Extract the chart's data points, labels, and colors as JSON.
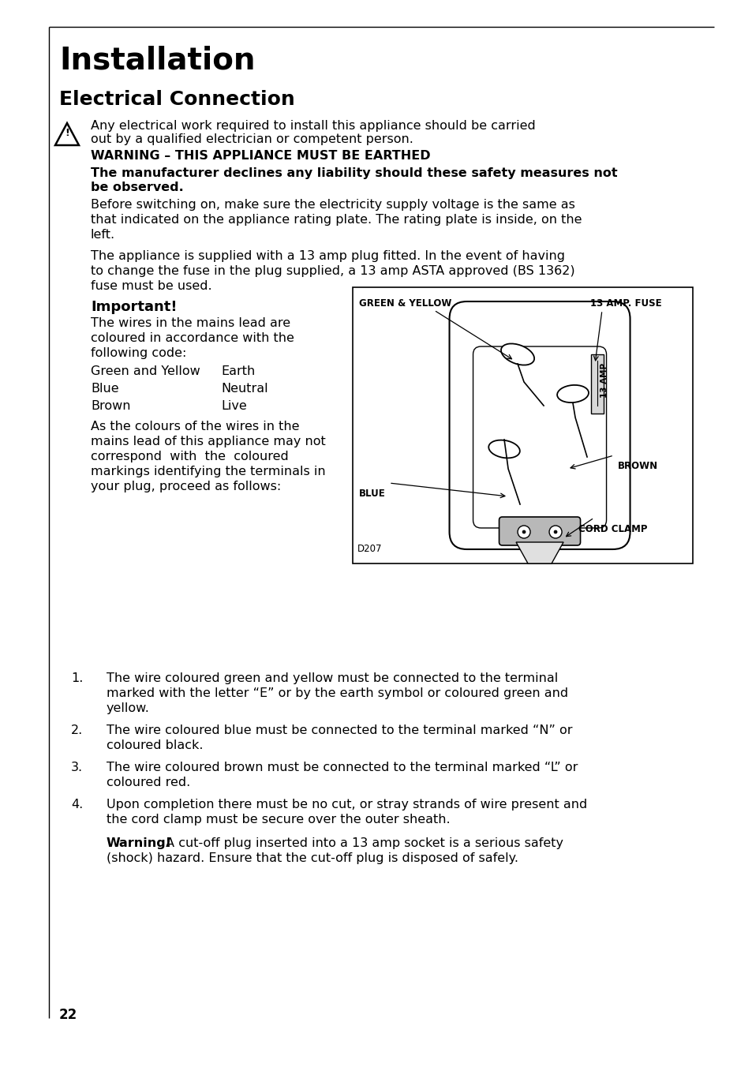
{
  "title": "Installation",
  "subtitle": "Electrical Connection",
  "bg_color": "#ffffff",
  "text_color": "#000000",
  "page_number": "22",
  "warning_line1": "Any electrical work required to install this appliance should be carried",
  "warning_line2": "out by a qualified electrician or competent person.",
  "warning_caps": "WARNING – THIS APPLIANCE MUST BE EARTHED",
  "bold_line1": "The manufacturer declines any liability should these safety measures not",
  "bold_line2": "be observed.",
  "para1_lines": [
    "Before switching on, make sure the electricity supply voltage is the same as",
    "that indicated on the appliance rating plate. The rating plate is inside, on the",
    "left."
  ],
  "para2_lines": [
    "The appliance is supplied with a 13 amp plug fitted. In the event of having",
    "to change the fuse in the plug supplied, a 13 amp ASTA approved (BS 1362)",
    "fuse must be used."
  ],
  "important": "Important!",
  "wires_lines": [
    "The wires in the mains lead are",
    "coloured in accordance with the",
    "following code:"
  ],
  "wire_colors": [
    [
      "Green and Yellow",
      "Earth"
    ],
    [
      "Blue",
      "Neutral"
    ],
    [
      "Brown",
      "Live"
    ]
  ],
  "as_colours_lines": [
    "As the colours of the wires in the",
    "mains lead of this appliance may not",
    "correspond  with  the  coloured",
    "markings identifying the terminals in",
    "your plug, proceed as follows:"
  ],
  "list_item1_lines": [
    "The wire coloured green and yellow must be connected to the terminal",
    "marked with the letter “E” or by the earth symbol or coloured green and",
    "yellow."
  ],
  "list_item2_lines": [
    "The wire coloured blue must be connected to the terminal marked “N” or",
    "coloured black."
  ],
  "list_item3_lines": [
    "The wire coloured brown must be connected to the terminal marked “L” or",
    "coloured red."
  ],
  "list_item4_lines": [
    "Upon completion there must be no cut, or stray strands of wire present and",
    "the cord clamp must be secure over the outer sheath."
  ],
  "warning_bold": "Warning!",
  "warning_rest_line1": " A cut-off plug inserted into a 13 amp socket is a serious safety",
  "warning_rest_line2": "(shock) hazard. Ensure that the cut-off plug is disposed of safely.",
  "diag_green_yellow": "GREEN & YELLOW",
  "diag_fuse": "13 AMP. FUSE",
  "diag_amp": "13 AMP",
  "diag_brown": "BROWN",
  "diag_blue": "BLUE",
  "diag_cord": "CORD CLAMP",
  "diag_d207": "D207"
}
